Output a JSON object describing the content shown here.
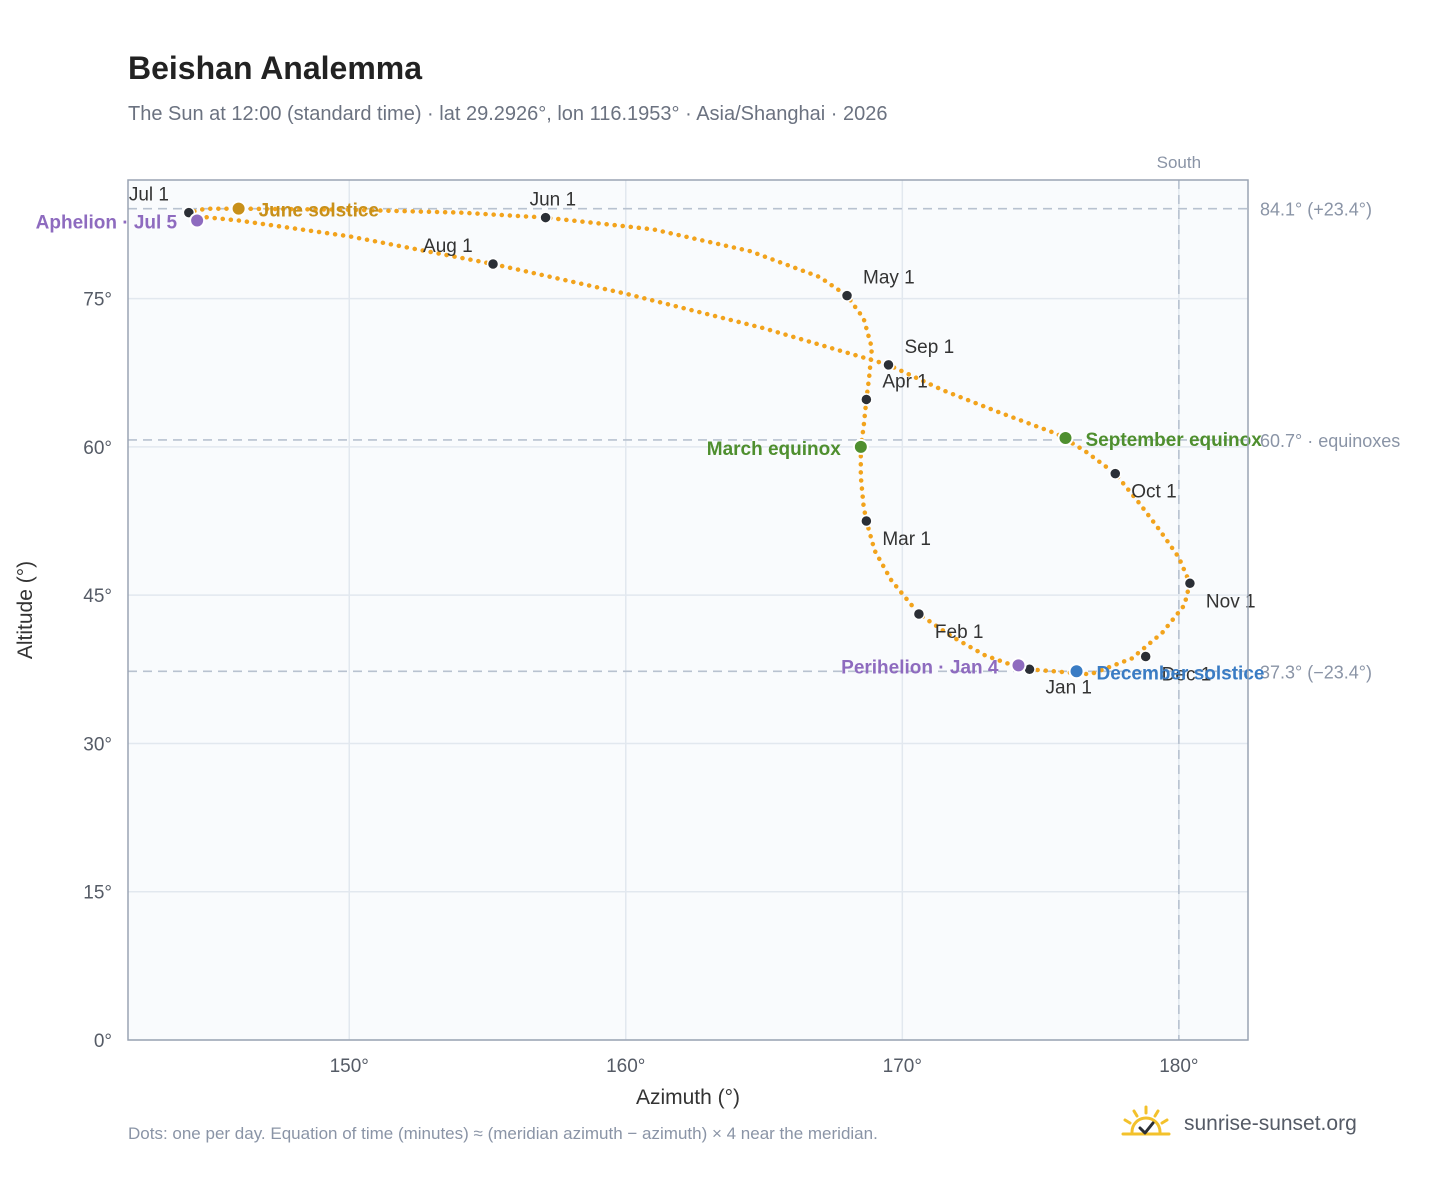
{
  "title": "Beishan Analemma",
  "subtitle": "The Sun at 12:00 (standard time) · lat 29.2926°, lon 116.1953° · Asia/Shanghai · 2026",
  "footnote": "Dots: one per day. Equation of time (minutes) ≈ (meridian azimuth − azimuth) × 4 near the meridian.",
  "brand": {
    "name": "sunrise-sunset.org",
    "icon": "sun-check-icon"
  },
  "chart_data": {
    "type": "scatter",
    "xlabel": "Azimuth (°)",
    "ylabel": "Altitude (°)",
    "xlim": [
      142,
      182.5
    ],
    "ylim": [
      0,
      87
    ],
    "xticks": [
      150,
      160,
      170,
      180
    ],
    "xtick_labels": [
      "150°",
      "160°",
      "170°",
      "180°"
    ],
    "yticks": [
      0,
      15,
      30,
      45,
      60,
      75
    ],
    "ytick_labels": [
      "0°",
      "15°",
      "30°",
      "45°",
      "60°",
      "75°"
    ],
    "grid": true,
    "colors": {
      "path": "#f2a31c",
      "month": "#2b2f36",
      "june_solstice": "#c8901a",
      "december_solstice": "#3a7cc4",
      "equinox": "#4f8f2f",
      "apsis": "#8e6bbf",
      "reference": "#b8c2d0",
      "plot_bg": "#f9fbfd",
      "frame": "#9aa4b4"
    },
    "path": [
      {
        "x": 174.6,
        "y": 37.5
      },
      {
        "x": 176.8,
        "y": 37.0
      },
      {
        "x": 178.3,
        "y": 38.6
      },
      {
        "x": 179.4,
        "y": 41.2
      },
      {
        "x": 180.2,
        "y": 44.0
      },
      {
        "x": 180.4,
        "y": 46.2
      },
      {
        "x": 180.0,
        "y": 48.8
      },
      {
        "x": 179.3,
        "y": 51.6
      },
      {
        "x": 178.6,
        "y": 54.2
      },
      {
        "x": 177.7,
        "y": 57.3
      },
      {
        "x": 176.6,
        "y": 59.6
      },
      {
        "x": 175.6,
        "y": 61.3
      },
      {
        "x": 173.5,
        "y": 63.5
      },
      {
        "x": 171.5,
        "y": 65.7
      },
      {
        "x": 169.5,
        "y": 68.3
      },
      {
        "x": 165.0,
        "y": 72.0
      },
      {
        "x": 160.0,
        "y": 75.5
      },
      {
        "x": 155.2,
        "y": 78.5
      },
      {
        "x": 150.0,
        "y": 81.3
      },
      {
        "x": 146.0,
        "y": 82.9
      },
      {
        "x": 144.6,
        "y": 83.3
      },
      {
        "x": 144.2,
        "y": 83.7
      },
      {
        "x": 144.8,
        "y": 84.1
      },
      {
        "x": 146.0,
        "y": 84.1
      },
      {
        "x": 150.0,
        "y": 84.0
      },
      {
        "x": 154.0,
        "y": 83.7
      },
      {
        "x": 157.1,
        "y": 83.2
      },
      {
        "x": 161.0,
        "y": 82.0
      },
      {
        "x": 164.5,
        "y": 79.8
      },
      {
        "x": 167.0,
        "y": 77.2
      },
      {
        "x": 168.0,
        "y": 75.3
      },
      {
        "x": 168.6,
        "y": 73.0
      },
      {
        "x": 168.9,
        "y": 70.0
      },
      {
        "x": 168.8,
        "y": 67.0
      },
      {
        "x": 168.7,
        "y": 64.8
      },
      {
        "x": 168.6,
        "y": 62.0
      },
      {
        "x": 168.5,
        "y": 60.0
      },
      {
        "x": 168.5,
        "y": 57.0
      },
      {
        "x": 168.6,
        "y": 54.0
      },
      {
        "x": 168.7,
        "y": 52.5
      },
      {
        "x": 169.0,
        "y": 49.5
      },
      {
        "x": 169.6,
        "y": 46.5
      },
      {
        "x": 170.6,
        "y": 43.1
      },
      {
        "x": 171.8,
        "y": 40.8
      },
      {
        "x": 173.0,
        "y": 38.9
      },
      {
        "x": 174.1,
        "y": 37.8
      },
      {
        "x": 174.6,
        "y": 37.5
      }
    ],
    "months": [
      {
        "label": "Jan 1",
        "x": 174.6,
        "y": 37.5
      },
      {
        "label": "Feb 1",
        "x": 170.6,
        "y": 43.1
      },
      {
        "label": "Mar 1",
        "x": 168.7,
        "y": 52.5
      },
      {
        "label": "Apr 1",
        "x": 168.7,
        "y": 64.8
      },
      {
        "label": "May 1",
        "x": 168.0,
        "y": 75.3
      },
      {
        "label": "Jun 1",
        "x": 157.1,
        "y": 83.2
      },
      {
        "label": "Jul 1",
        "x": 144.2,
        "y": 83.7
      },
      {
        "label": "Aug 1",
        "x": 155.2,
        "y": 78.5
      },
      {
        "label": "Sep 1",
        "x": 169.5,
        "y": 68.3
      },
      {
        "label": "Oct 1",
        "x": 177.7,
        "y": 57.3
      },
      {
        "label": "Nov 1",
        "x": 180.4,
        "y": 46.2
      },
      {
        "label": "Dec 1",
        "x": 178.8,
        "y": 38.8
      }
    ],
    "events": [
      {
        "label": "June solstice",
        "x": 146.0,
        "y": 84.1,
        "color_key": "june_solstice"
      },
      {
        "label": "December solstice",
        "x": 176.3,
        "y": 37.3,
        "color_key": "december_solstice"
      },
      {
        "label": "March equinox",
        "x": 168.5,
        "y": 60.0,
        "color_key": "equinox"
      },
      {
        "label": "September equinox",
        "x": 175.9,
        "y": 60.9,
        "color_key": "equinox"
      },
      {
        "label": "Aphelion · Jul 5",
        "x": 144.5,
        "y": 82.9,
        "color_key": "apsis"
      },
      {
        "label": "Perihelion · Jan 4",
        "x": 174.2,
        "y": 37.9,
        "color_key": "apsis"
      }
    ],
    "reference_lines": {
      "horizontal": [
        {
          "value": 84.1,
          "label": "84.1° (+23.4°)"
        },
        {
          "value": 60.7,
          "label": "60.7° · equinoxes"
        },
        {
          "value": 37.3,
          "label": "37.3° (−23.4°)"
        }
      ],
      "vertical": [
        {
          "value": 180,
          "label": "South"
        }
      ]
    }
  }
}
